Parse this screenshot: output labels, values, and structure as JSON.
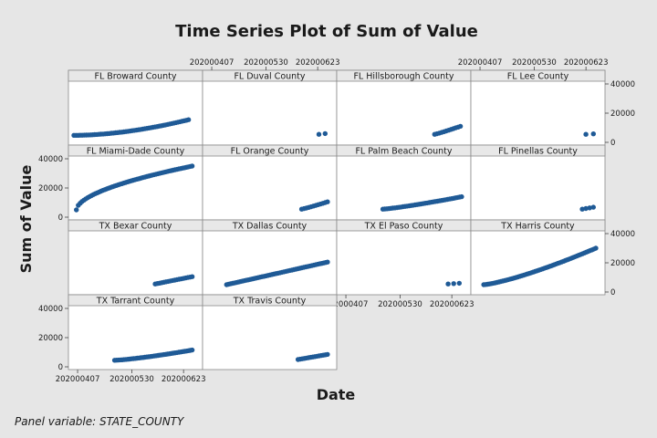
{
  "chart_data": {
    "type": "scatter",
    "title": "Time Series Plot of Sum of Value",
    "xlabel": "Date",
    "ylabel": "Sum of Value",
    "footnote": "Panel variable: STATE_COUNTY",
    "x_ticks": [
      "202000407",
      "202000530",
      "202000623"
    ],
    "y_ticks": [
      "0",
      "20000",
      "40000"
    ],
    "ylim": [
      0,
      40000
    ],
    "xlim": [
      0,
      100
    ],
    "marker_color": "#1f5a96",
    "grid": false,
    "layout": "4x4 panels",
    "panels": [
      {
        "name": "FL Broward County",
        "start": 0,
        "end": 93,
        "y0": 4800,
        "y1": 15500,
        "n": 56,
        "curve": 1.8
      },
      {
        "name": "FL Duval County",
        "start": 90,
        "end": 95,
        "y0": 5500,
        "y1": 6000,
        "n": 2,
        "curve": 1
      },
      {
        "name": "FL Hillsborough County",
        "start": 75,
        "end": 96,
        "y0": 5500,
        "y1": 11000,
        "n": 12,
        "curve": 1.1
      },
      {
        "name": "FL Lee County",
        "start": 89,
        "end": 95,
        "y0": 5500,
        "y1": 5800,
        "n": 2,
        "curve": 1
      },
      {
        "name": "FL Miami-Dade County",
        "start": 2,
        "end": 96,
        "y0": 5000,
        "y1": 35000,
        "n": 62,
        "curve": 0.55
      },
      {
        "name": "FL Orange County",
        "start": 76,
        "end": 97,
        "y0": 5500,
        "y1": 10500,
        "n": 12,
        "curve": 1.1
      },
      {
        "name": "FL Palm Beach County",
        "start": 33,
        "end": 97,
        "y0": 5500,
        "y1": 14000,
        "n": 40,
        "curve": 1.2
      },
      {
        "name": "FL Pinellas County",
        "start": 86,
        "end": 95,
        "y0": 5500,
        "y1": 6800,
        "n": 4,
        "curve": 1
      },
      {
        "name": "TX Bexar County",
        "start": 66,
        "end": 96,
        "y0": 5500,
        "y1": 10500,
        "n": 18,
        "curve": 1
      },
      {
        "name": "TX Dallas County",
        "start": 15,
        "end": 97,
        "y0": 5000,
        "y1": 20500,
        "n": 52,
        "curve": 1
      },
      {
        "name": "TX El Paso County",
        "start": 86,
        "end": 95,
        "y0": 5500,
        "y1": 6000,
        "n": 3,
        "curve": 1
      },
      {
        "name": "TX Harris County",
        "start": 6,
        "end": 97,
        "y0": 5000,
        "y1": 30000,
        "n": 60,
        "curve": 1.3
      },
      {
        "name": "TX Tarrant County",
        "start": 33,
        "end": 96,
        "y0": 4500,
        "y1": 11500,
        "n": 42,
        "curve": 1.3
      },
      {
        "name": "TX Travis County",
        "start": 73,
        "end": 97,
        "y0": 5000,
        "y1": 8500,
        "n": 15,
        "curve": 1
      }
    ]
  }
}
